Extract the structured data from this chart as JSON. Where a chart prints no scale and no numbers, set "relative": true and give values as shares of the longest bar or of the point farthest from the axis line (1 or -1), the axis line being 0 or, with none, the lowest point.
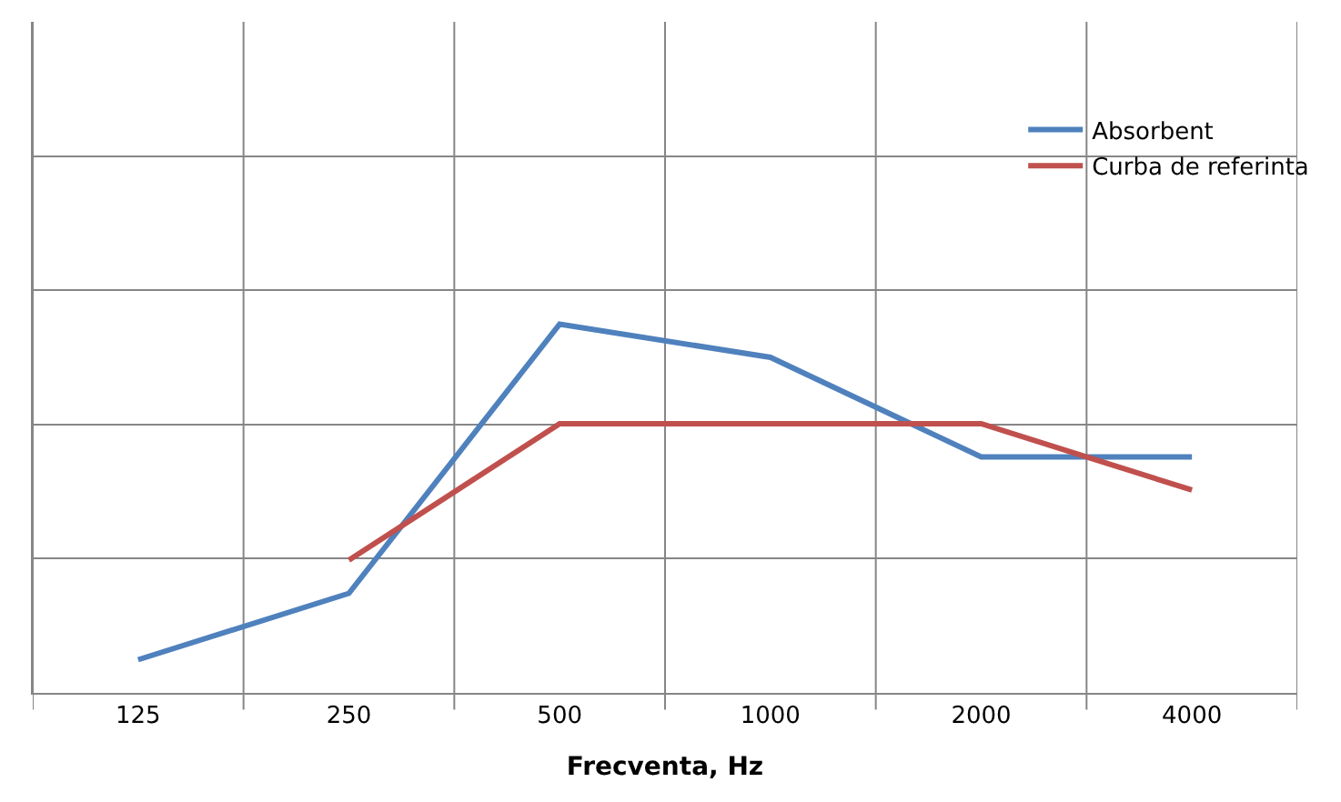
{
  "chart_data": {
    "type": "line",
    "relative": true,
    "xlabel": "Frecventa, Hz",
    "categories": [
      "125",
      "250",
      "500",
      "1000",
      "2000",
      "4000"
    ],
    "series": [
      {
        "name": "Absorbent",
        "color": "#4f81bd",
        "values": [
          0.09,
          0.27,
          1,
          0.91,
          0.64,
          0.64
        ]
      },
      {
        "name": "Curba de referinta",
        "color": "#c0504d",
        "values": [
          null,
          0.36,
          0.73,
          0.73,
          0.73,
          0.55
        ]
      }
    ],
    "grid": true,
    "legend": "top right",
    "marker": "none",
    "line_style": "solid"
  }
}
